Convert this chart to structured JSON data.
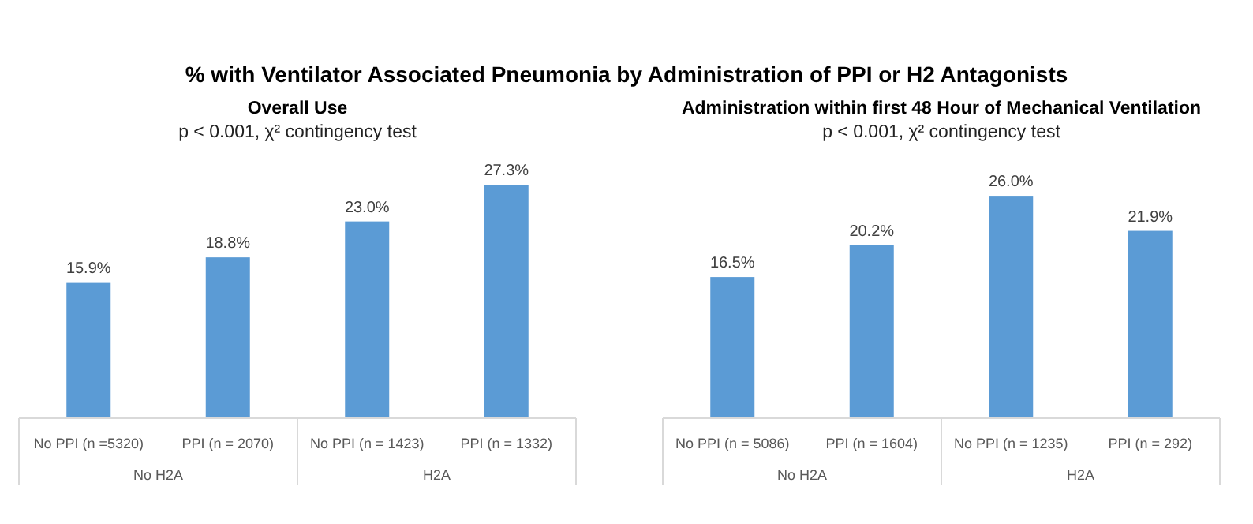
{
  "chart_data": [
    {
      "type": "other",
      "title": "% with Ventilator Associated Pneumonia by Administration of PPI or H2 Antagonists"
    },
    {
      "type": "bar",
      "title": "Overall Use",
      "subtitle": "p < 0.001, χ² contingency test",
      "categories": [
        "No PPI (n =5320)",
        "PPI (n = 2070)",
        "No PPI (n = 1423)",
        "PPI (n = 1332)"
      ],
      "values": [
        15.9,
        18.8,
        23.0,
        27.3
      ],
      "value_labels": [
        "15.9%",
        "18.8%",
        "23.0%",
        "27.3%"
      ],
      "color": "#5b9bd5",
      "annotations": [
        "No H2A",
        "H2A"
      ]
    },
    {
      "type": "bar",
      "title": "Administration within first 48 Hour of Mechanical Ventilation",
      "subtitle": "p < 0.001, χ² contingency test",
      "categories": [
        "No PPI (n = 5086)",
        "PPI (n = 1604)",
        "No PPI (n = 1235)",
        "PPI (n = 292)"
      ],
      "values": [
        16.5,
        20.2,
        26.0,
        21.9
      ],
      "value_labels": [
        "16.5%",
        "20.2%",
        "26.0%",
        "21.9%"
      ],
      "color": "#5b9bd5",
      "annotations": [
        "No H2A",
        "H2A"
      ]
    }
  ]
}
